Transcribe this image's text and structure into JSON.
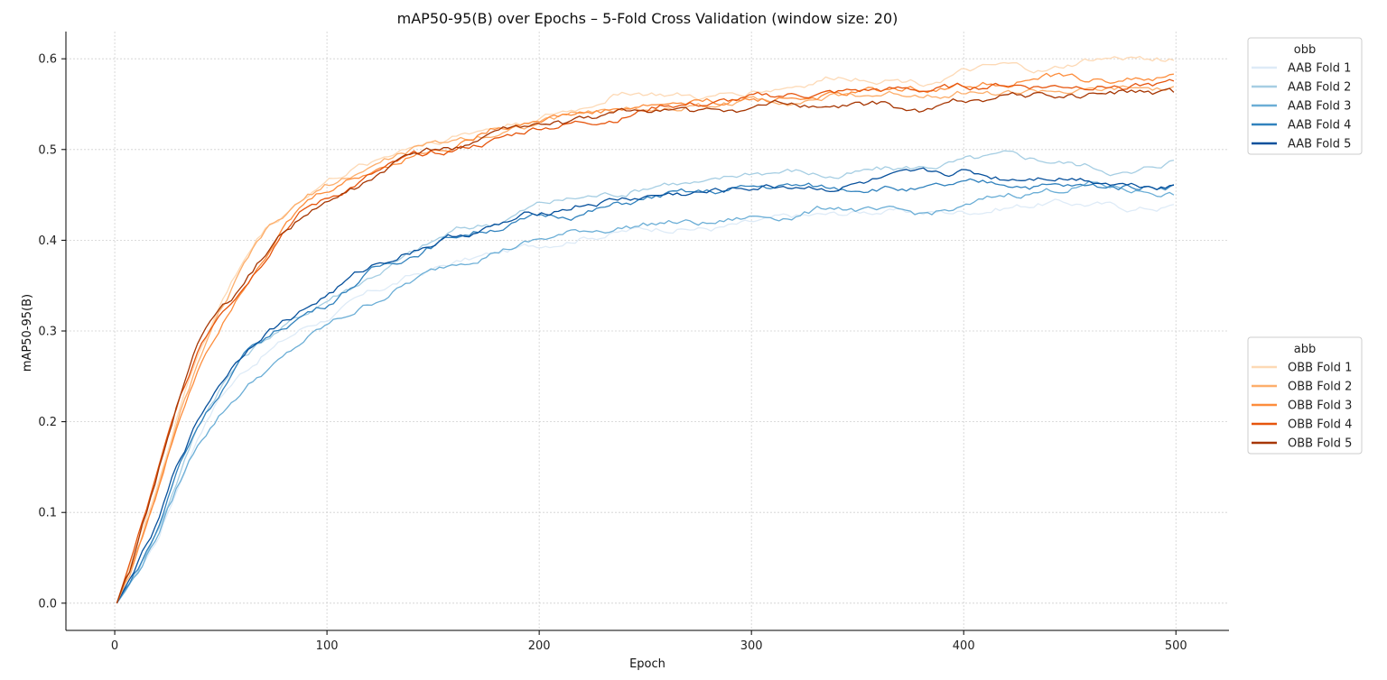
{
  "chart_data": {
    "type": "line",
    "title": "mAP50-95(B) over Epochs – 5-Fold Cross Validation (window size: 20)",
    "xlabel": "Epoch",
    "ylabel": "mAP50-95(B)",
    "xlim": [
      -23,
      525
    ],
    "ylim": [
      -0.03,
      0.63
    ],
    "xticks": [
      0,
      100,
      200,
      300,
      400,
      500
    ],
    "xtick_labels": [
      "0",
      "100",
      "200",
      "300",
      "400",
      "500"
    ],
    "yticks": [
      0.0,
      0.1,
      0.2,
      0.3,
      0.4,
      0.5,
      0.6
    ],
    "ytick_labels": [
      "0.0",
      "0.1",
      "0.2",
      "0.3",
      "0.4",
      "0.5",
      "0.6"
    ],
    "grid": true,
    "legends": [
      {
        "title": "obb",
        "placement": "right-top",
        "entries": [
          "AAB Fold 1",
          "AAB Fold 2",
          "AAB Fold 3",
          "AAB Fold 4",
          "AAB Fold 5"
        ]
      },
      {
        "title": "abb",
        "placement": "right-middle",
        "entries": [
          "OBB Fold 1",
          "OBB Fold 2",
          "OBB Fold 3",
          "OBB Fold 4",
          "OBB Fold 5"
        ]
      }
    ],
    "x": [
      1,
      10,
      20,
      30,
      40,
      50,
      60,
      70,
      80,
      90,
      100,
      120,
      140,
      160,
      180,
      200,
      220,
      240,
      260,
      280,
      300,
      320,
      340,
      360,
      380,
      400,
      420,
      440,
      460,
      480,
      500
    ],
    "series": [
      {
        "name": "AAB Fold 1",
        "color": "#deebf7",
        "values": [
          0.0,
          0.03,
          0.07,
          0.13,
          0.19,
          0.23,
          0.255,
          0.275,
          0.29,
          0.305,
          0.315,
          0.34,
          0.36,
          0.375,
          0.385,
          0.395,
          0.405,
          0.41,
          0.415,
          0.413,
          0.418,
          0.425,
          0.428,
          0.433,
          0.43,
          0.432,
          0.437,
          0.442,
          0.44,
          0.435,
          0.438
        ]
      },
      {
        "name": "AAB Fold 2",
        "color": "#a6cee3",
        "values": [
          0.0,
          0.035,
          0.08,
          0.14,
          0.2,
          0.24,
          0.27,
          0.29,
          0.305,
          0.32,
          0.335,
          0.36,
          0.385,
          0.41,
          0.42,
          0.44,
          0.447,
          0.453,
          0.465,
          0.462,
          0.475,
          0.477,
          0.47,
          0.477,
          0.48,
          0.487,
          0.492,
          0.488,
          0.482,
          0.473,
          0.49
        ]
      },
      {
        "name": "AAB Fold 3",
        "color": "#6baed6",
        "values": [
          0.0,
          0.03,
          0.075,
          0.13,
          0.18,
          0.21,
          0.235,
          0.255,
          0.27,
          0.29,
          0.305,
          0.33,
          0.355,
          0.375,
          0.39,
          0.4,
          0.41,
          0.415,
          0.42,
          0.418,
          0.425,
          0.428,
          0.438,
          0.43,
          0.428,
          0.435,
          0.45,
          0.455,
          0.462,
          0.455,
          0.452
        ]
      },
      {
        "name": "AAB Fold 4",
        "color": "#3182bd",
        "values": [
          0.0,
          0.035,
          0.08,
          0.15,
          0.2,
          0.235,
          0.27,
          0.29,
          0.305,
          0.32,
          0.33,
          0.365,
          0.385,
          0.405,
          0.415,
          0.425,
          0.43,
          0.44,
          0.45,
          0.452,
          0.458,
          0.46,
          0.457,
          0.46,
          0.455,
          0.46,
          0.463,
          0.46,
          0.458,
          0.46,
          0.462
        ]
      },
      {
        "name": "AAB Fold 5",
        "color": "#08519c",
        "values": [
          0.0,
          0.04,
          0.085,
          0.155,
          0.205,
          0.245,
          0.275,
          0.3,
          0.312,
          0.325,
          0.34,
          0.37,
          0.39,
          0.405,
          0.415,
          0.43,
          0.44,
          0.445,
          0.45,
          0.452,
          0.458,
          0.46,
          0.458,
          0.465,
          0.47,
          0.475,
          0.468,
          0.472,
          0.468,
          0.462,
          0.462
        ]
      },
      {
        "name": "OBB Fold 1",
        "color": "#fdd9b5",
        "values": [
          0.0,
          0.06,
          0.13,
          0.21,
          0.28,
          0.33,
          0.375,
          0.41,
          0.43,
          0.45,
          0.465,
          0.485,
          0.505,
          0.515,
          0.525,
          0.535,
          0.545,
          0.565,
          0.56,
          0.555,
          0.565,
          0.57,
          0.58,
          0.58,
          0.575,
          0.585,
          0.59,
          0.585,
          0.598,
          0.6,
          0.6
        ]
      },
      {
        "name": "OBB Fold 2",
        "color": "#fdae6b",
        "values": [
          0.0,
          0.05,
          0.12,
          0.2,
          0.27,
          0.32,
          0.365,
          0.405,
          0.425,
          0.445,
          0.46,
          0.48,
          0.5,
          0.51,
          0.52,
          0.53,
          0.54,
          0.545,
          0.545,
          0.548,
          0.555,
          0.555,
          0.558,
          0.56,
          0.562,
          0.565,
          0.562,
          0.565,
          0.563,
          0.566,
          0.565
        ]
      },
      {
        "name": "OBB Fold 3",
        "color": "#fd8d3c",
        "values": [
          0.0,
          0.055,
          0.12,
          0.2,
          0.265,
          0.31,
          0.35,
          0.385,
          0.415,
          0.44,
          0.455,
          0.475,
          0.495,
          0.505,
          0.525,
          0.535,
          0.54,
          0.545,
          0.55,
          0.553,
          0.555,
          0.557,
          0.56,
          0.565,
          0.567,
          0.57,
          0.575,
          0.58,
          0.575,
          0.578,
          0.58
        ]
      },
      {
        "name": "OBB Fold 4",
        "color": "#e6550d",
        "values": [
          0.0,
          0.065,
          0.14,
          0.22,
          0.285,
          0.325,
          0.35,
          0.38,
          0.415,
          0.435,
          0.445,
          0.47,
          0.49,
          0.5,
          0.51,
          0.525,
          0.53,
          0.537,
          0.55,
          0.55,
          0.555,
          0.56,
          0.562,
          0.565,
          0.565,
          0.568,
          0.572,
          0.57,
          0.572,
          0.57,
          0.572
        ]
      },
      {
        "name": "OBB Fold 5",
        "color": "#a63603",
        "values": [
          0.0,
          0.06,
          0.14,
          0.225,
          0.29,
          0.325,
          0.345,
          0.38,
          0.41,
          0.43,
          0.44,
          0.465,
          0.495,
          0.5,
          0.52,
          0.525,
          0.53,
          0.54,
          0.545,
          0.54,
          0.545,
          0.55,
          0.545,
          0.55,
          0.54,
          0.555,
          0.56,
          0.56,
          0.56,
          0.565,
          0.56
        ]
      }
    ]
  }
}
